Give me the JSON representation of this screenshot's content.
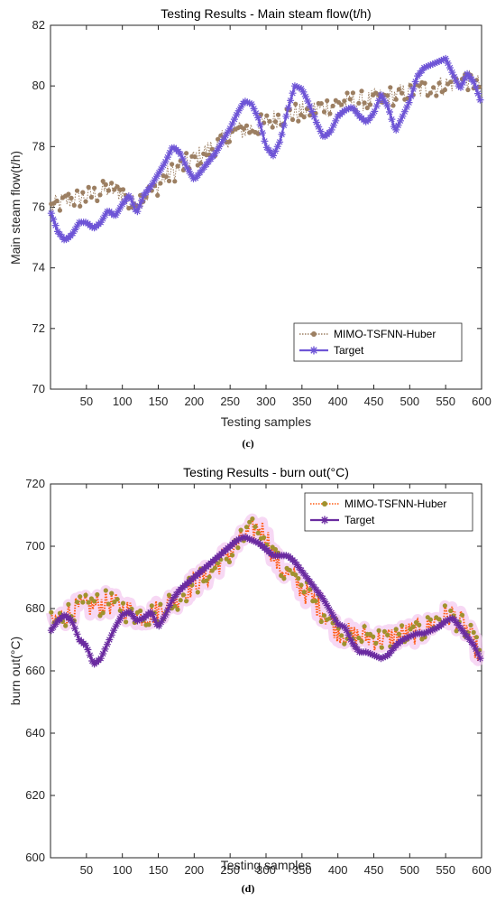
{
  "chart_data": [
    {
      "type": "line",
      "title": "Testing Results - Main steam flow(t/h)",
      "xlabel": "Testing samples",
      "ylabel": "Main steam flow(t/h)",
      "caption": "(c)",
      "xlim": [
        0,
        600
      ],
      "ylim": [
        70,
        82
      ],
      "xticks": [
        50,
        100,
        150,
        200,
        250,
        300,
        350,
        400,
        450,
        500,
        550,
        600
      ],
      "yticks": [
        70,
        72,
        74,
        76,
        78,
        80,
        82
      ],
      "grid": false,
      "legend_position": "bottom-right",
      "series": [
        {
          "name": "MIMO-TSFNN-Huber",
          "color": "#9c7f62",
          "marker": "dot",
          "line": "dotted",
          "noise": 0.35,
          "x": [
            1,
            20,
            40,
            60,
            80,
            100,
            110,
            120,
            140,
            160,
            180,
            200,
            220,
            240,
            260,
            280,
            300,
            320,
            340,
            360,
            380,
            400,
            420,
            440,
            460,
            480,
            500,
            520,
            540,
            560,
            580,
            600
          ],
          "y": [
            76.0,
            76.2,
            76.3,
            76.4,
            76.6,
            76.5,
            76.0,
            76.2,
            76.5,
            77.0,
            77.3,
            77.6,
            77.9,
            78.2,
            78.5,
            78.6,
            78.8,
            79.0,
            79.1,
            79.2,
            79.3,
            79.4,
            79.5,
            79.5,
            79.6,
            79.7,
            79.8,
            79.9,
            80.0,
            80.1,
            80.2,
            80.0
          ]
        },
        {
          "name": "Target",
          "color": "#6e55d6",
          "marker": "star",
          "line": "solid",
          "noise": 0,
          "x": [
            1,
            10,
            20,
            30,
            40,
            50,
            60,
            70,
            80,
            90,
            100,
            110,
            120,
            130,
            140,
            150,
            160,
            170,
            180,
            190,
            200,
            210,
            220,
            230,
            240,
            250,
            260,
            270,
            280,
            290,
            300,
            310,
            320,
            330,
            340,
            350,
            360,
            370,
            380,
            390,
            400,
            410,
            420,
            430,
            440,
            450,
            460,
            470,
            480,
            490,
            500,
            510,
            520,
            530,
            540,
            550,
            560,
            570,
            580,
            590,
            600
          ],
          "y": [
            75.8,
            75.2,
            74.9,
            75.1,
            75.5,
            75.5,
            75.3,
            75.5,
            75.9,
            75.7,
            76.1,
            76.4,
            75.8,
            76.4,
            76.7,
            77.1,
            77.5,
            78.0,
            77.8,
            77.3,
            76.9,
            77.2,
            77.5,
            77.8,
            78.2,
            78.6,
            79.1,
            79.5,
            79.4,
            78.9,
            78.0,
            77.7,
            78.2,
            79.2,
            80.0,
            79.9,
            79.4,
            78.8,
            78.3,
            78.5,
            79.0,
            79.2,
            79.3,
            79.0,
            78.8,
            79.1,
            79.7,
            79.3,
            78.5,
            79.0,
            79.5,
            80.3,
            80.6,
            80.7,
            80.8,
            80.9,
            80.4,
            79.9,
            80.4,
            80.1,
            79.4
          ]
        }
      ]
    },
    {
      "type": "line",
      "title": "Testing Results - burn out(°C)",
      "xlabel": "Testing samples",
      "ylabel": "burn out(°C)",
      "caption": "(d)",
      "xlim": [
        0,
        600
      ],
      "ylim": [
        600,
        720
      ],
      "xticks": [
        50,
        100,
        150,
        200,
        250,
        300,
        350,
        400,
        450,
        500,
        550,
        600
      ],
      "yticks": [
        600,
        620,
        640,
        660,
        680,
        700,
        720
      ],
      "grid": false,
      "legend_position": "top-right",
      "series": [
        {
          "name": "MIMO-TSFNN-Huber",
          "color": "#a0922e",
          "line_color": "#ff5a10",
          "marker": "dot",
          "line": "dotted",
          "noise": 4,
          "x": [
            1,
            20,
            40,
            60,
            80,
            100,
            120,
            140,
            160,
            180,
            200,
            220,
            240,
            260,
            270,
            280,
            290,
            300,
            310,
            320,
            340,
            360,
            380,
            400,
            420,
            440,
            460,
            480,
            500,
            520,
            540,
            560,
            580,
            600
          ],
          "y": [
            675,
            678,
            680,
            681,
            682,
            680,
            678,
            678,
            681,
            684,
            688,
            691,
            696,
            700,
            703,
            705,
            706,
            704,
            697,
            693,
            689,
            684,
            679,
            673,
            671,
            671,
            670,
            671,
            672,
            673,
            677,
            678,
            673,
            664
          ]
        },
        {
          "name": "Target",
          "color": "#6a2ba0",
          "marker": "star",
          "line": "solid",
          "noise": 0,
          "x": [
            1,
            10,
            20,
            30,
            40,
            50,
            60,
            70,
            80,
            90,
            100,
            110,
            120,
            130,
            140,
            150,
            160,
            170,
            180,
            190,
            200,
            220,
            240,
            260,
            270,
            280,
            290,
            300,
            310,
            320,
            330,
            340,
            350,
            360,
            370,
            380,
            390,
            400,
            410,
            420,
            430,
            440,
            450,
            460,
            470,
            480,
            490,
            500,
            510,
            520,
            530,
            540,
            550,
            560,
            570,
            580,
            590,
            600
          ],
          "y": [
            673,
            676,
            678,
            676,
            670,
            668,
            662,
            664,
            669,
            674,
            678,
            679,
            676,
            677,
            679,
            674,
            678,
            683,
            686,
            688,
            690,
            694,
            698,
            702,
            703,
            702,
            701,
            699,
            697,
            697,
            697,
            695,
            692,
            689,
            686,
            683,
            679,
            675,
            674,
            669,
            666,
            666,
            665,
            664,
            665,
            668,
            670,
            671,
            672,
            672,
            673,
            674,
            676,
            677,
            674,
            671,
            668,
            663
          ]
        }
      ]
    }
  ]
}
